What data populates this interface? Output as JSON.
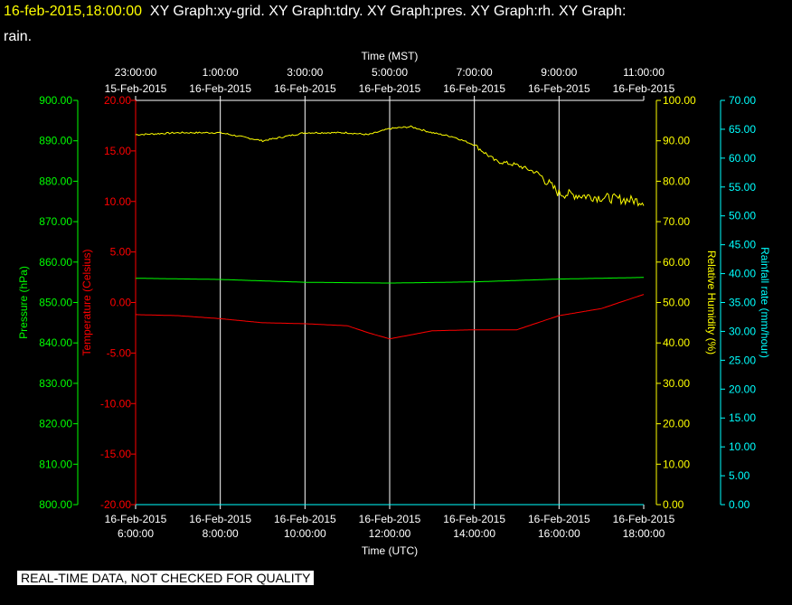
{
  "header": {
    "timestamp": "16-feb-2015,18:00:00",
    "line1": "XY Graph:xy-grid.  XY Graph:tdry.  XY Graph:pres.  XY Graph:rh.  XY Graph:",
    "line2": "rain."
  },
  "footer": {
    "quality_note": "REAL-TIME DATA, NOT CHECKED FOR QUALITY"
  },
  "chart_data": {
    "type": "line",
    "title": "",
    "xlabel_bottom": "Time (UTC)",
    "xlabel_top": "Time (MST)",
    "x_ticks_bottom": [
      {
        "date": "16-Feb-2015",
        "time": "6:00:00"
      },
      {
        "date": "16-Feb-2015",
        "time": "8:00:00"
      },
      {
        "date": "16-Feb-2015",
        "time": "10:00:00"
      },
      {
        "date": "16-Feb-2015",
        "time": "12:00:00"
      },
      {
        "date": "16-Feb-2015",
        "time": "14:00:00"
      },
      {
        "date": "16-Feb-2015",
        "time": "16:00:00"
      },
      {
        "date": "16-Feb-2015",
        "time": "18:00:00"
      }
    ],
    "x_ticks_top": [
      {
        "time": "23:00:00",
        "date": "15-Feb-2015"
      },
      {
        "time": "1:00:00",
        "date": "16-Feb-2015"
      },
      {
        "time": "3:00:00",
        "date": "16-Feb-2015"
      },
      {
        "time": "5:00:00",
        "date": "16-Feb-2015"
      },
      {
        "time": "7:00:00",
        "date": "16-Feb-2015"
      },
      {
        "time": "9:00:00",
        "date": "16-Feb-2015"
      },
      {
        "time": "11:00:00",
        "date": "16-Feb-2015"
      }
    ],
    "xlim": [
      "16-Feb-2015 06:00:00",
      "16-Feb-2015 18:00:00"
    ],
    "grid": "vertical",
    "axes": {
      "pressure": {
        "label": "Pressure (hPa)",
        "color": "#00ff00",
        "ylim": [
          800,
          900
        ],
        "ticks": [
          "800.00",
          "810.00",
          "820.00",
          "830.00",
          "840.00",
          "850.00",
          "860.00",
          "870.00",
          "880.00",
          "890.00",
          "900.00"
        ]
      },
      "temperature": {
        "label": "Temperature (Celsius)",
        "color": "#ff0000",
        "ylim": [
          -20,
          20
        ],
        "ticks": [
          "-20.00",
          "-15.00",
          "-10.00",
          "-5.00",
          "0.00",
          "5.00",
          "10.00",
          "15.00",
          "20.00"
        ]
      },
      "humidity": {
        "label": "Relative Humidity (%)",
        "color": "#ffff00",
        "ylim": [
          0,
          100
        ],
        "ticks": [
          "0.00",
          "10.00",
          "20.00",
          "30.00",
          "40.00",
          "50.00",
          "60.00",
          "70.00",
          "80.00",
          "90.00",
          "100.00"
        ]
      },
      "rain": {
        "label": "Rainfall rate (mm/hour)",
        "color": "#00ffff",
        "ylim": [
          0,
          70
        ],
        "ticks": [
          "0.00",
          "5.00",
          "10.00",
          "15.00",
          "20.00",
          "25.00",
          "30.00",
          "35.00",
          "40.00",
          "45.00",
          "50.00",
          "55.00",
          "60.00",
          "65.00",
          "70.00"
        ]
      }
    },
    "series": [
      {
        "axis": "humidity",
        "color": "#ffff00",
        "noise": 0.4,
        "x": [
          "06:00",
          "07:00",
          "08:00",
          "08:30",
          "09:00",
          "10:00",
          "11:00",
          "11:30",
          "12:00",
          "12:30",
          "13:00",
          "13:30",
          "14:00",
          "14:30",
          "15:00",
          "15:30",
          "16:00",
          "17:00",
          "18:00"
        ],
        "y": [
          91.5,
          92,
          92,
          91,
          90,
          92,
          92,
          91.5,
          93,
          93.5,
          92,
          91,
          89,
          85,
          84,
          82,
          77,
          76,
          75
        ]
      },
      {
        "axis": "pressure",
        "color": "#00ff00",
        "noise": 0,
        "x": [
          "06:00",
          "08:00",
          "10:00",
          "12:00",
          "14:00",
          "16:00",
          "18:00"
        ],
        "y": [
          856.0,
          855.7,
          855.0,
          854.8,
          855.1,
          855.8,
          856.2
        ]
      },
      {
        "axis": "temperature",
        "color": "#ff0000",
        "noise": 0,
        "x": [
          "06:00",
          "07:00",
          "08:00",
          "09:00",
          "10:00",
          "11:00",
          "11:30",
          "12:00",
          "12:30",
          "13:00",
          "14:00",
          "15:00",
          "16:00",
          "17:00",
          "18:00"
        ],
        "y": [
          -1.2,
          -1.3,
          -1.6,
          -2.0,
          -2.1,
          -2.3,
          -3.0,
          -3.6,
          -3.2,
          -2.8,
          -2.7,
          -2.7,
          -1.3,
          -0.6,
          0.8
        ]
      },
      {
        "axis": "rain",
        "color": "#00ffff",
        "noise": 0,
        "x": [
          "06:00",
          "18:00"
        ],
        "y": [
          0,
          0
        ]
      }
    ]
  }
}
